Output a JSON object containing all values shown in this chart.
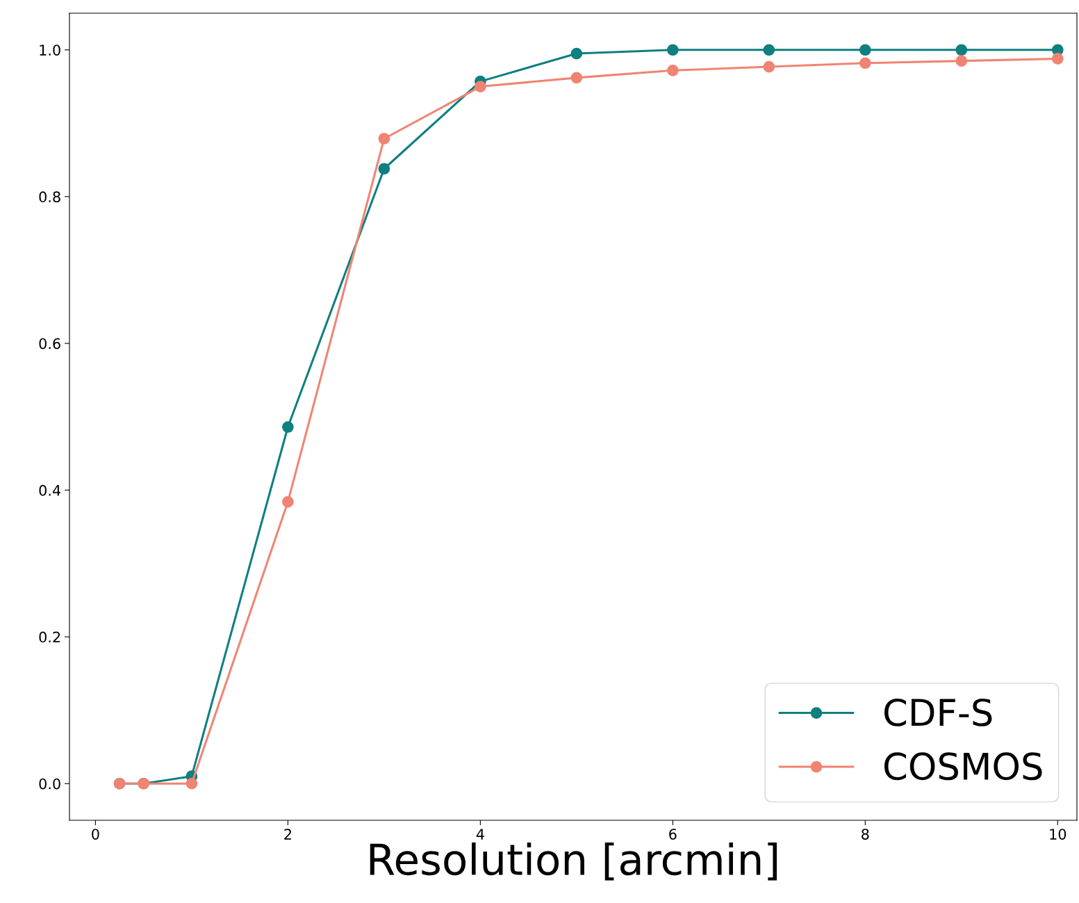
{
  "chart_data": {
    "type": "line",
    "xlabel": "Resolution [arcmin]",
    "xlim": [
      -0.27,
      10.2
    ],
    "ylim": [
      -0.05,
      1.05
    ],
    "xticks": [
      0,
      2,
      4,
      6,
      8,
      10
    ],
    "yticks": [
      {
        "value": 0,
        "label": "0.0"
      },
      0.2,
      0.4,
      0.6,
      0.8,
      {
        "value": 1,
        "label": "1.0"
      }
    ],
    "x": [
      0.25,
      0.5,
      1,
      2,
      3,
      4,
      5,
      6,
      7,
      8,
      9,
      10
    ],
    "marker": "circle",
    "line_style": "solid",
    "grid": false,
    "legend": "bottom right",
    "series": [
      {
        "name": "CDF-S",
        "color": "#0f7f7f",
        "values": [
          0,
          0,
          0.01,
          0.486,
          0.838,
          0.957,
          0.995,
          1.0,
          1.0,
          1.0,
          1.0,
          1.0
        ]
      },
      {
        "name": "COSMOS",
        "color": "#f08473",
        "values": [
          0,
          0,
          0,
          0.384,
          0.879,
          0.95,
          0.962,
          0.972,
          0.977,
          0.982,
          0.985,
          0.988
        ]
      }
    ]
  }
}
